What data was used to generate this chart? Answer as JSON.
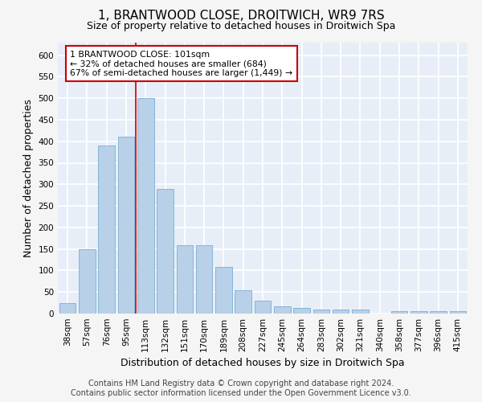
{
  "title": "1, BRANTWOOD CLOSE, DROITWICH, WR9 7RS",
  "subtitle": "Size of property relative to detached houses in Droitwich Spa",
  "xlabel": "Distribution of detached houses by size in Droitwich Spa",
  "ylabel": "Number of detached properties",
  "categories": [
    "38sqm",
    "57sqm",
    "76sqm",
    "95sqm",
    "113sqm",
    "132sqm",
    "151sqm",
    "170sqm",
    "189sqm",
    "208sqm",
    "227sqm",
    "245sqm",
    "264sqm",
    "283sqm",
    "302sqm",
    "321sqm",
    "340sqm",
    "358sqm",
    "377sqm",
    "396sqm",
    "415sqm"
  ],
  "values": [
    25,
    150,
    390,
    410,
    500,
    290,
    158,
    158,
    108,
    55,
    30,
    17,
    13,
    10,
    10,
    10,
    0,
    6,
    6,
    6,
    6
  ],
  "bar_color": "#b8d0e8",
  "bar_edge_color": "#7aafd4",
  "redline_x": 3.5,
  "annotation_text": "1 BRANTWOOD CLOSE: 101sqm\n← 32% of detached houses are smaller (684)\n67% of semi-detached houses are larger (1,449) →",
  "annotation_box_color": "#ffffff",
  "annotation_box_edge": "#cc0000",
  "footer_line1": "Contains HM Land Registry data © Crown copyright and database right 2024.",
  "footer_line2": "Contains public sector information licensed under the Open Government Licence v3.0.",
  "ylim": [
    0,
    630
  ],
  "yticks": [
    0,
    50,
    100,
    150,
    200,
    250,
    300,
    350,
    400,
    450,
    500,
    550,
    600
  ],
  "bg_color": "#e8eef8",
  "grid_color": "#ffffff",
  "title_fontsize": 11,
  "subtitle_fontsize": 9,
  "tick_fontsize": 7.5,
  "ylabel_fontsize": 9,
  "xlabel_fontsize": 9,
  "footer_fontsize": 7,
  "fig_bg": "#f5f5f5"
}
